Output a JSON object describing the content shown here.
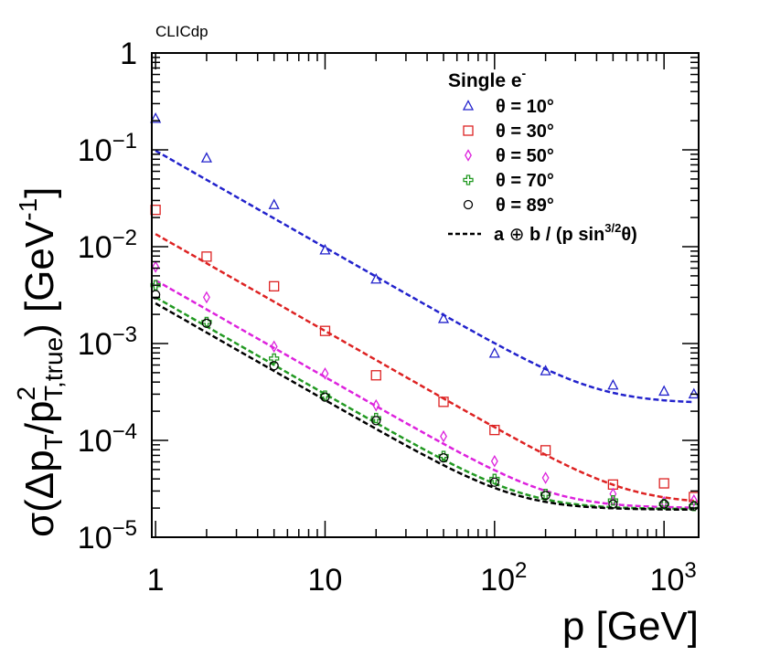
{
  "chart_data": {
    "type": "scatter",
    "tag": "CLICdp",
    "title": "",
    "xlabel": "p [GeV]",
    "ylabel_parts": {
      "sigma": "σ(Δp",
      "sub_t1": "T",
      "slash": "/p",
      "sup_2": "2",
      "sub_ttrue": "T,true",
      "unit_open": ") [GeV",
      "unit_sup": "-1",
      "unit_close": "]"
    },
    "x_scale": "log",
    "y_scale": "log",
    "xlim": [
      0.95,
      1600
    ],
    "ylim": [
      1e-05,
      1
    ],
    "x_ticks": [
      {
        "value": 1,
        "base": "1",
        "exp": ""
      },
      {
        "value": 10,
        "base": "10",
        "exp": ""
      },
      {
        "value": 100,
        "base": "10",
        "exp": "2"
      },
      {
        "value": 1000,
        "base": "10",
        "exp": "3"
      }
    ],
    "y_ticks": [
      {
        "value": 1,
        "base": "1",
        "exp": ""
      },
      {
        "value": 0.1,
        "base": "10",
        "exp": "−1"
      },
      {
        "value": 0.01,
        "base": "10",
        "exp": "−2"
      },
      {
        "value": 0.001,
        "base": "10",
        "exp": "−3"
      },
      {
        "value": 0.0001,
        "base": "10",
        "exp": "−4"
      },
      {
        "value": 1e-05,
        "base": "10",
        "exp": "−5"
      }
    ],
    "legend": {
      "header": "Single e",
      "header_sup": "-",
      "fit_label_parts": {
        "a": "a ",
        "oplus": "⊕",
        "b": " b / (p sin",
        "sup": "3/2",
        "theta": "θ)"
      }
    },
    "series": [
      {
        "name": "θ = 10°",
        "color": "#2222cc",
        "marker": "triangle",
        "x": [
          1,
          2,
          5,
          10,
          20,
          50,
          100,
          200,
          500,
          1000,
          1500
        ],
        "y": [
          0.21,
          0.082,
          0.027,
          0.0092,
          0.0046,
          0.0018,
          0.00079,
          0.00052,
          0.00037,
          0.00032,
          0.0003
        ],
        "fit_a": 0.00024,
        "fit_b": 0.098
      },
      {
        "name": "θ = 30°",
        "color": "#dd2222",
        "marker": "square",
        "x": [
          1,
          2,
          5,
          10,
          20,
          50,
          100,
          200,
          500,
          1000,
          1500
        ],
        "y": [
          0.024,
          0.0079,
          0.0039,
          0.00135,
          0.00047,
          0.00025,
          0.000128,
          7.9e-05,
          3.5e-05,
          3.6e-05,
          2.6e-05
        ],
        "fit_a": 2.2e-05,
        "fit_b": 0.0135
      },
      {
        "name": "θ = 50°",
        "color": "#dd22dd",
        "marker": "diamond",
        "x": [
          1,
          2,
          5,
          10,
          20,
          50,
          100,
          200,
          500,
          1000,
          1500
        ],
        "y": [
          0.0062,
          0.003,
          0.00093,
          0.00049,
          0.00023,
          0.00011,
          6.1e-05,
          4.1e-05,
          2.8e-05,
          2.3e-05,
          2.4e-05
        ],
        "fit_a": 2e-05,
        "fit_b": 0.0045
      },
      {
        "name": "θ = 70°",
        "color": "#229922",
        "marker": "cross",
        "x": [
          1,
          2,
          5,
          10,
          20,
          50,
          100,
          200,
          500,
          1000,
          1500
        ],
        "y": [
          0.004,
          0.00167,
          0.0007,
          0.00029,
          0.00017,
          6.9e-05,
          4e-05,
          2.8e-05,
          2.4e-05,
          2.2e-05,
          2.1e-05
        ],
        "fit_a": 1.95e-05,
        "fit_b": 0.003
      },
      {
        "name": "θ = 89°",
        "color": "#000000",
        "marker": "circle",
        "x": [
          1,
          2,
          5,
          10,
          20,
          50,
          100,
          200,
          500,
          1000,
          1500
        ],
        "y": [
          0.0032,
          0.00162,
          0.00059,
          0.00028,
          0.00016,
          6.6e-05,
          3.7e-05,
          2.7e-05,
          2.2e-05,
          2.2e-05,
          2.1e-05
        ],
        "fit_a": 1.92e-05,
        "fit_b": 0.0026
      }
    ]
  }
}
